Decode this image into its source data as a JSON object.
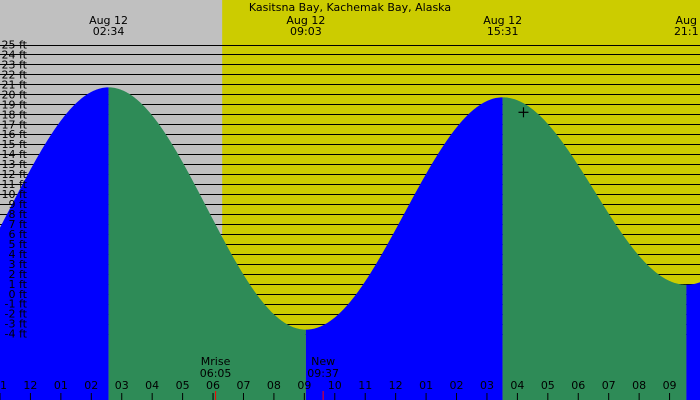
{
  "chart_data": {
    "type": "area",
    "title": "Kasitsna Bay, Kachemak Bay, Alaska",
    "y_unit": "ft",
    "ylim": [
      -5,
      25.5
    ],
    "xlim_hours": [
      23.0,
      46.0
    ],
    "y_ticks": [
      25,
      24,
      23,
      22,
      21,
      20,
      19,
      18,
      17,
      16,
      15,
      14,
      13,
      12,
      11,
      10,
      9,
      8,
      7,
      6,
      5,
      4,
      3,
      2,
      1,
      0,
      -1,
      -2,
      -3,
      -4
    ],
    "y_tick_labels": [
      "25 ft",
      "24 ft",
      "23 ft",
      "22 ft",
      "21 ft",
      "20 ft",
      "19 ft",
      "18 ft",
      "17 ft",
      "16 ft",
      "15 ft",
      "14 ft",
      "13 ft",
      "12 ft",
      "11 ft",
      "10 ft",
      "9 ft",
      "8 ft",
      "7 ft",
      "6 ft",
      "5 ft",
      "4 ft",
      "3 ft",
      "2 ft",
      "1 ft",
      "0 ft",
      "-1 ft",
      "-2 ft",
      "-3 ft",
      "-4 ft"
    ],
    "hour_ticks": [
      {
        "h": 23,
        "label": "11"
      },
      {
        "h": 24,
        "label": "12"
      },
      {
        "h": 25,
        "label": "01"
      },
      {
        "h": 26,
        "label": "02"
      },
      {
        "h": 27,
        "label": "03"
      },
      {
        "h": 28,
        "label": "04"
      },
      {
        "h": 29,
        "label": "05"
      },
      {
        "h": 30,
        "label": "06"
      },
      {
        "h": 31,
        "label": "07"
      },
      {
        "h": 32,
        "label": "08"
      },
      {
        "h": 33,
        "label": "09"
      },
      {
        "h": 34,
        "label": "10"
      },
      {
        "h": 35,
        "label": "11"
      },
      {
        "h": 36,
        "label": "12"
      },
      {
        "h": 37,
        "label": "01"
      },
      {
        "h": 38,
        "label": "02"
      },
      {
        "h": 39,
        "label": "03"
      },
      {
        "h": 40,
        "label": "04"
      },
      {
        "h": 41,
        "label": "05"
      },
      {
        "h": 42,
        "label": "06"
      },
      {
        "h": 43,
        "label": "07"
      },
      {
        "h": 44,
        "label": "08"
      },
      {
        "h": 45,
        "label": "09"
      }
    ],
    "tides": [
      {
        "h": 26.567,
        "level": 20.7,
        "kind": "high",
        "date": "Aug 12",
        "time": "02:34"
      },
      {
        "h": 33.05,
        "level": -3.6,
        "kind": "low",
        "date": "Aug 12",
        "time": "09:03"
      },
      {
        "h": 39.517,
        "level": 19.7,
        "kind": "high",
        "date": "Aug 12",
        "time": "15:31"
      },
      {
        "h": 45.55,
        "level": 0.9,
        "kind": "low",
        "date": "Aug",
        "time": "21:1"
      }
    ],
    "day_start_h": 30.3,
    "colors": {
      "night": "#c0c0c0",
      "day": "#cccc00",
      "rising": "#0000ff",
      "falling": "#2e8b57",
      "grid": "#000000",
      "moon_marker": "#ff0000"
    },
    "events": [
      {
        "h": 30.083,
        "label": "Mrise",
        "time": "06:05"
      },
      {
        "h": 33.617,
        "label": "New",
        "time": "09:37"
      }
    ],
    "cursor": {
      "h": 40.2,
      "level": 18.2
    }
  }
}
